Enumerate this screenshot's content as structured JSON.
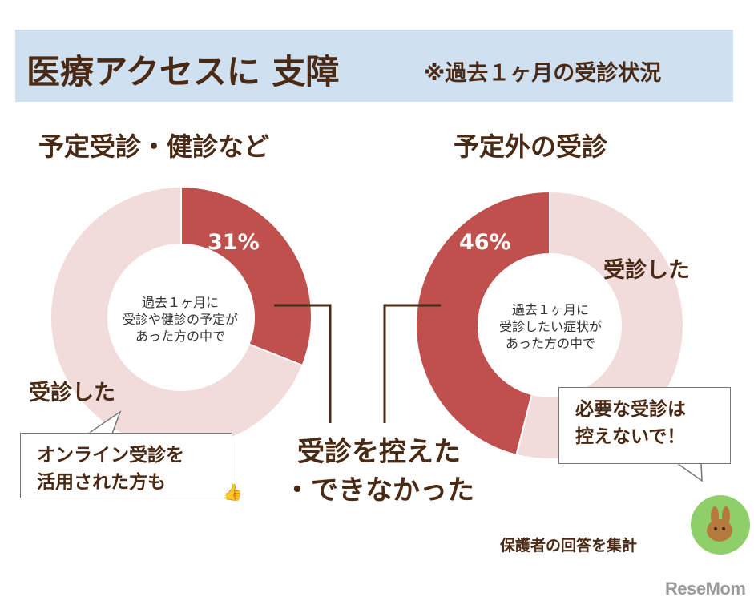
{
  "header": {
    "title": "医療アクセスに 支障",
    "note": "※過去１ヶ月の受診状況"
  },
  "chart_data": [
    {
      "type": "pie",
      "title": "予定受診・健診など",
      "center_text": "過去１ヶ月に\n受診や健診の予定が\nあった方の中で",
      "slices": [
        {
          "label": "受診を控えた・できなかった",
          "value": 31,
          "value_label": "31%",
          "color": "#c0504d"
        },
        {
          "label": "受診した",
          "value": 69,
          "color": "#f2dcdb"
        }
      ]
    },
    {
      "type": "pie",
      "title": "予定外の受診",
      "center_text": "過去１ヶ月に\n受診したい症状が\nあった方の中で",
      "slices": [
        {
          "label": "受診を控えた・できなかった",
          "value": 46,
          "value_label": "46%",
          "color": "#c0504d"
        },
        {
          "label": "受診した",
          "value": 54,
          "color": "#f2dcdb"
        }
      ]
    }
  ],
  "labels": {
    "left_received": "受診した",
    "right_received": "受診した",
    "center_callout": "受診を控えた\n・できなかった",
    "left_callout": "オンライン受診を\n活用された方も",
    "right_callout": "必要な受診は\n控えないで！",
    "footer_note": "保護者の回答を集計",
    "logo": "ReseMom"
  }
}
